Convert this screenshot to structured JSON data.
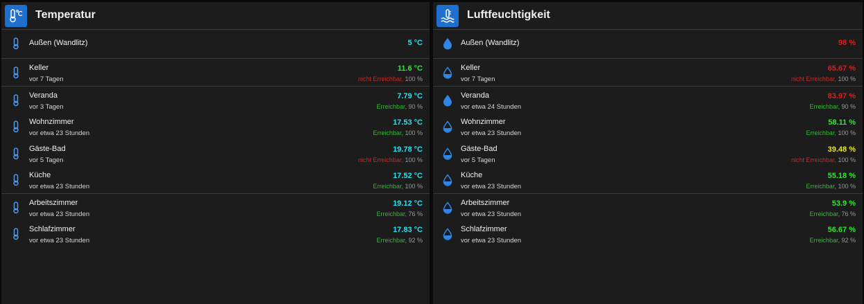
{
  "temperatur": {
    "title": "Temperatur",
    "icon": "thermometer-celsius-icon",
    "rows": [
      {
        "name": "Außen (Wandlitz)",
        "value": "5 °C",
        "color": "#22e3f0"
      },
      {
        "name": "Keller",
        "sub": "vor 7 Tagen",
        "value": "11.6 °C",
        "color": "#2de82d",
        "status": "nicht Erreichbar,",
        "pct": "100 %"
      },
      {
        "name": "Veranda",
        "sub": "vor 3 Tagen",
        "value": "7.79 °C",
        "color": "#22e3f0",
        "status": "Erreichbar,",
        "pct": "90 %"
      },
      {
        "name": "Wohnzimmer",
        "sub": "vor etwa 23 Stunden",
        "value": "17.53 °C",
        "color": "#22e3f0",
        "status": "Erreichbar,",
        "pct": "100 %"
      },
      {
        "name": "Gäste-Bad",
        "sub": "vor 5 Tagen",
        "value": "19.78 °C",
        "color": "#22e3f0",
        "status": "nicht Erreichbar,",
        "pct": "100 %"
      },
      {
        "name": "Küche",
        "sub": "vor etwa 23 Stunden",
        "value": "17.52 °C",
        "color": "#22e3f0",
        "status": "Erreichbar,",
        "pct": "100 %"
      },
      {
        "name": "Arbeitszimmer",
        "sub": "vor etwa 23 Stunden",
        "value": "19.12 °C",
        "color": "#22e3f0",
        "status": "Erreichbar,",
        "pct": "76 %"
      },
      {
        "name": "Schlafzimmer",
        "sub": "vor etwa 23 Stunden",
        "value": "17.83 °C",
        "color": "#22e3f0",
        "status": "Erreichbar,",
        "pct": "92 %"
      }
    ]
  },
  "luftfeuchtigkeit": {
    "title": "Luftfeuchtigkeit",
    "icon": "water-thermometer-icon",
    "rows": [
      {
        "name": "Außen (Wandlitz)",
        "value": "98 %",
        "color": "#e21b1b"
      },
      {
        "name": "Keller",
        "sub": "vor 7 Tagen",
        "value": "65.67 %",
        "color": "#e21b1b",
        "status": "nicht Erreichbar,",
        "pct": "100 %"
      },
      {
        "name": "Veranda",
        "sub": "vor etwa 24 Stunden",
        "value": "83.97 %",
        "color": "#e21b1b",
        "status": "Erreichbar,",
        "pct": "90 %"
      },
      {
        "name": "Wohnzimmer",
        "sub": "vor etwa 23 Stunden",
        "value": "58.11 %",
        "color": "#2de82d",
        "status": "Erreichbar,",
        "pct": "100 %"
      },
      {
        "name": "Gäste-Bad",
        "sub": "vor 5 Tagen",
        "value": "39.48 %",
        "color": "#e8e81c",
        "status": "nicht Erreichbar,",
        "pct": "100 %"
      },
      {
        "name": "Küche",
        "sub": "vor etwa 23 Stunden",
        "value": "55.18 %",
        "color": "#2de82d",
        "status": "Erreichbar,",
        "pct": "100 %"
      },
      {
        "name": "Arbeitszimmer",
        "sub": "vor etwa 23 Stunden",
        "value": "53.9 %",
        "color": "#2de82d",
        "status": "Erreichbar,",
        "pct": "76 %"
      },
      {
        "name": "Schlafzimmer",
        "sub": "vor etwa 23 Stunden",
        "value": "56.67 %",
        "color": "#2de82d",
        "status": "Erreichbar,",
        "pct": "92 %"
      }
    ]
  }
}
